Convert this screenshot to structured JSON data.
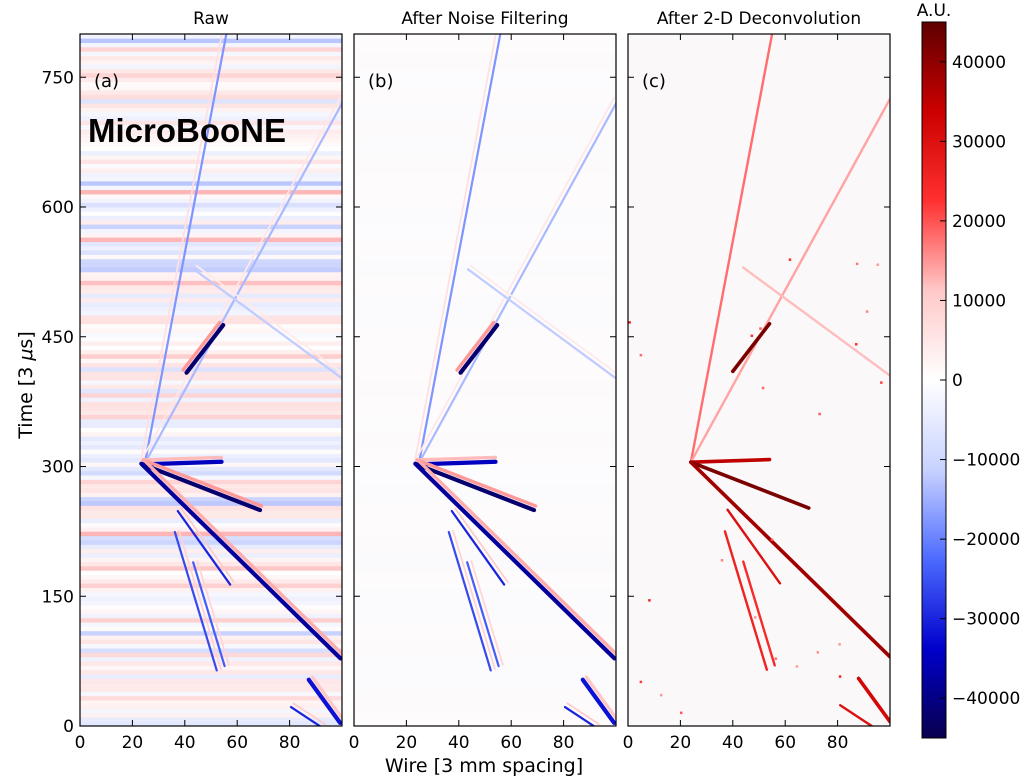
{
  "chart_data": {
    "type": "heatmap",
    "ylabel": "Time [3 $\\mu$s]",
    "xlabel": "Wire [3 mm spacing]",
    "ylim": [
      0,
      800
    ],
    "xlim": [
      0,
      100
    ],
    "yticks": [
      0,
      150,
      300,
      450,
      600,
      750
    ],
    "xticks": [
      0,
      20,
      40,
      60,
      80
    ],
    "panels": [
      {
        "title": "Raw",
        "badge": "(a)",
        "watermark": "MicroBooNE",
        "style": "raw"
      },
      {
        "title": "After Noise Filtering",
        "badge": "(b)",
        "style": "filtered"
      },
      {
        "title": "After 2-D Deconvolution",
        "badge": "(c)",
        "style": "deconvolved"
      }
    ],
    "colorbar": {
      "label": "A.U.",
      "range": [
        -45000,
        45000
      ],
      "ticks": [
        40000,
        30000,
        20000,
        10000,
        0,
        -10000,
        -20000,
        -30000,
        -40000
      ],
      "tick_labels": [
        "40000",
        "30000",
        "20000",
        "10000",
        "0",
        "−10000",
        "−20000",
        "−30000",
        "−40000"
      ],
      "colormap": [
        "#08004d",
        "#0000cc",
        "#4d6bff",
        "#c8d2ff",
        "#ffffff",
        "#ffc8c8",
        "#ff3030",
        "#cc0000",
        "#5e0000"
      ]
    },
    "tracks": [
      {
        "name": "vertex-to-upper-left",
        "x": [
          24,
          55
        ],
        "t": [
          305,
          800
        ],
        "amp": 18000
      },
      {
        "name": "vertex-to-upper-right",
        "x": [
          24,
          100
        ],
        "t": [
          305,
          725
        ],
        "amp": 14000
      },
      {
        "name": "crossing-track",
        "x": [
          44,
          100
        ],
        "t": [
          530,
          405
        ],
        "amp": 12000
      },
      {
        "name": "short-stub-upper",
        "x": [
          40,
          54
        ],
        "t": [
          410,
          465
        ],
        "amp": 42000
      },
      {
        "name": "short-horizontal",
        "x": [
          24,
          54
        ],
        "t": [
          305,
          308
        ],
        "amp": 35000
      },
      {
        "name": "mid-downward",
        "x": [
          24,
          69
        ],
        "t": [
          305,
          252
        ],
        "amp": 42000
      },
      {
        "name": "long-downward",
        "x": [
          24,
          100
        ],
        "t": [
          305,
          80
        ],
        "amp": 38000
      },
      {
        "name": "delta-ray",
        "x": [
          38,
          58
        ],
        "t": [
          250,
          165
        ],
        "amp": 30000
      },
      {
        "name": "branch-a",
        "x": [
          37,
          53
        ],
        "t": [
          225,
          65
        ],
        "amp": 26000
      },
      {
        "name": "branch-b",
        "x": [
          44,
          56
        ],
        "t": [
          190,
          70
        ],
        "amp": 24000
      },
      {
        "name": "bottom-right",
        "x": [
          88,
          100
        ],
        "t": [
          55,
          5
        ],
        "amp": 32000
      },
      {
        "name": "bottom-right-2",
        "x": [
          81,
          93
        ],
        "t": [
          24,
          0
        ],
        "amp": 30000
      }
    ]
  }
}
